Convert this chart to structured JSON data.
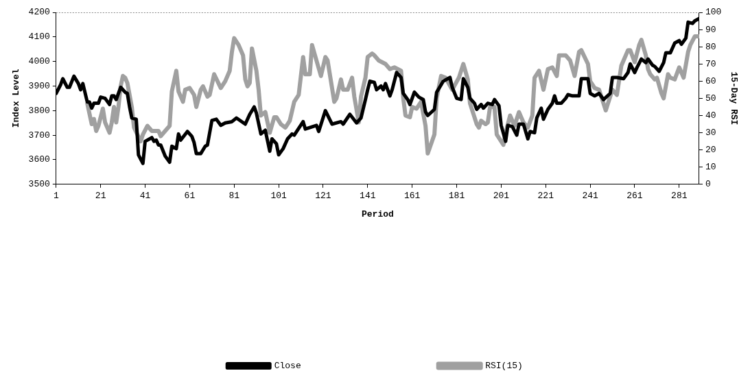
{
  "chart_data": {
    "type": "line",
    "xlabel": "Period",
    "ylabel": "Index Level",
    "y2label": "15-Day RSI",
    "xlim": [
      1,
      290
    ],
    "xticks": [
      1,
      21,
      41,
      61,
      81,
      101,
      121,
      141,
      161,
      181,
      201,
      221,
      241,
      261,
      281
    ],
    "ylim": [
      3500,
      4200
    ],
    "yticks": [
      3500,
      3600,
      3700,
      3800,
      3900,
      4000,
      4100,
      4200
    ],
    "y2lim": [
      0,
      100
    ],
    "y2ticks": [
      0,
      10,
      20,
      30,
      40,
      50,
      60,
      70,
      80,
      90,
      100
    ],
    "grid": false,
    "legend": "bottom",
    "marker": "none",
    "series": [
      {
        "name": "Close",
        "color": "#000000",
        "x": [
          1,
          3,
          4,
          6,
          7,
          9,
          11,
          12,
          13,
          15,
          16,
          17,
          18,
          20,
          21,
          23,
          25,
          26,
          27,
          28,
          30,
          32,
          33,
          34,
          35,
          37,
          38,
          40,
          41,
          44,
          45,
          46,
          47,
          48,
          50,
          52,
          53,
          55,
          56,
          57,
          60,
          62,
          63,
          64,
          66,
          68,
          69,
          71,
          73,
          75,
          77,
          80,
          82,
          86,
          88,
          90,
          91,
          93,
          95,
          97,
          98,
          100,
          101,
          103,
          105,
          107,
          108,
          112,
          113,
          118,
          119,
          122,
          125,
          129,
          130,
          133,
          136,
          138,
          140,
          141,
          142,
          144,
          145,
          147,
          148,
          149,
          151,
          152,
          154,
          156,
          157,
          159,
          160,
          161,
          162,
          164,
          166,
          167,
          168,
          171,
          172,
          174,
          175,
          178,
          179,
          181,
          183,
          184,
          186,
          187,
          189,
          190,
          192,
          193,
          195,
          197,
          198,
          200,
          201,
          203,
          204,
          206,
          208,
          209,
          211,
          213,
          214,
          216,
          217,
          219,
          220,
          222,
          224,
          225,
          226,
          228,
          230,
          231,
          233,
          236,
          237,
          240,
          241,
          243,
          245,
          247,
          250,
          251,
          253,
          256,
          258,
          259,
          261,
          262,
          264,
          266,
          267,
          269,
          270,
          272,
          274,
          275,
          277,
          278,
          279,
          281,
          282,
          284,
          285,
          287,
          288,
          290
        ],
        "values": [
          3870,
          3905,
          3930,
          3895,
          3895,
          3940,
          3910,
          3885,
          3910,
          3835,
          3835,
          3810,
          3830,
          3830,
          3855,
          3850,
          3825,
          3860,
          3860,
          3845,
          3895,
          3875,
          3870,
          3815,
          3770,
          3765,
          3620,
          3585,
          3675,
          3690,
          3675,
          3680,
          3660,
          3660,
          3615,
          3590,
          3655,
          3645,
          3705,
          3680,
          3715,
          3695,
          3670,
          3625,
          3625,
          3655,
          3660,
          3760,
          3765,
          3740,
          3750,
          3755,
          3770,
          3745,
          3785,
          3815,
          3790,
          3705,
          3720,
          3635,
          3685,
          3665,
          3620,
          3645,
          3685,
          3705,
          3700,
          3755,
          3725,
          3740,
          3715,
          3800,
          3745,
          3755,
          3745,
          3785,
          3750,
          3770,
          3845,
          3885,
          3920,
          3915,
          3885,
          3900,
          3885,
          3910,
          3860,
          3885,
          3955,
          3935,
          3870,
          3845,
          3825,
          3850,
          3875,
          3855,
          3845,
          3795,
          3780,
          3805,
          3875,
          3905,
          3920,
          3935,
          3895,
          3850,
          3845,
          3930,
          3895,
          3850,
          3830,
          3805,
          3825,
          3810,
          3830,
          3825,
          3845,
          3820,
          3740,
          3675,
          3740,
          3735,
          3700,
          3745,
          3745,
          3685,
          3715,
          3710,
          3770,
          3810,
          3765,
          3805,
          3830,
          3860,
          3830,
          3830,
          3850,
          3865,
          3860,
          3860,
          3930,
          3930,
          3870,
          3860,
          3870,
          3845,
          3870,
          3935,
          3935,
          3930,
          3955,
          3990,
          3955,
          3975,
          4010,
          3995,
          4010,
          3985,
          3980,
          3960,
          3995,
          4035,
          4035,
          4055,
          4075,
          4085,
          4070,
          4095,
          4160,
          4155,
          4165,
          4175
        ]
      },
      {
        "name": "RSI(15)",
        "color": "#a0a0a0",
        "axis": "y2",
        "x": [
          15,
          17,
          18,
          19,
          20,
          22,
          23,
          25,
          26,
          27,
          28,
          29,
          30,
          31,
          32,
          33,
          35,
          36,
          39,
          40,
          42,
          44,
          47,
          48,
          50,
          52,
          53,
          55,
          56,
          58,
          59,
          61,
          63,
          64,
          66,
          67,
          69,
          70,
          72,
          75,
          77,
          79,
          80,
          81,
          83,
          85,
          86,
          87,
          88,
          89,
          91,
          92,
          93,
          95,
          97,
          99,
          100,
          102,
          104,
          106,
          108,
          110,
          112,
          113,
          115,
          116,
          118,
          120,
          122,
          123,
          126,
          127,
          129,
          130,
          132,
          134,
          135,
          137,
          138,
          140,
          141,
          143,
          144,
          146,
          149,
          151,
          153,
          156,
          157,
          158,
          160,
          161,
          163,
          165,
          167,
          168,
          171,
          172,
          174,
          176,
          179,
          182,
          184,
          186,
          187,
          190,
          191,
          192,
          194,
          195,
          196,
          198,
          199,
          202,
          203,
          205,
          207,
          209,
          211,
          213,
          215,
          216,
          218,
          220,
          222,
          224,
          226,
          227,
          230,
          232,
          234,
          236,
          237,
          240,
          241,
          243,
          245,
          248,
          249,
          251,
          253,
          255,
          258,
          259,
          261,
          263,
          264,
          266,
          267,
          268,
          270,
          271,
          273,
          274,
          276,
          277,
          279,
          281,
          283,
          285,
          286,
          288,
          290
        ],
        "values": [
          47,
          35,
          38,
          31,
          34,
          44,
          36,
          30,
          36,
          45,
          36,
          45,
          57,
          63,
          62,
          59,
          45,
          33,
          25,
          29,
          34,
          31,
          31,
          28,
          31,
          34,
          54,
          66,
          54,
          48,
          55,
          56,
          52,
          45,
          55,
          57,
          51,
          52,
          64,
          56,
          60,
          66,
          77,
          85,
          81,
          75,
          61,
          57,
          59,
          79,
          66,
          55,
          40,
          42,
          30,
          39,
          39,
          35,
          33,
          37,
          48,
          52,
          74,
          64,
          64,
          81,
          72,
          63,
          74,
          72,
          48,
          50,
          61,
          55,
          55,
          62,
          51,
          36,
          51,
          62,
          74,
          76,
          75,
          72,
          70,
          67,
          68,
          66,
          50,
          40,
          39,
          45,
          44,
          48,
          34,
          18,
          29,
          50,
          63,
          62,
          55,
          62,
          70,
          61,
          47,
          35,
          33,
          37,
          35,
          36,
          45,
          45,
          29,
          23,
          30,
          40,
          34,
          42,
          36,
          33,
          40,
          62,
          66,
          55,
          67,
          68,
          63,
          75,
          75,
          72,
          63,
          77,
          78,
          70,
          60,
          56,
          55,
          43,
          47,
          55,
          52,
          69,
          78,
          78,
          71,
          81,
          84,
          75,
          67,
          64,
          61,
          62,
          53,
          50,
          64,
          62,
          61,
          68,
          62,
          77,
          81,
          86,
          86
        ]
      }
    ]
  }
}
